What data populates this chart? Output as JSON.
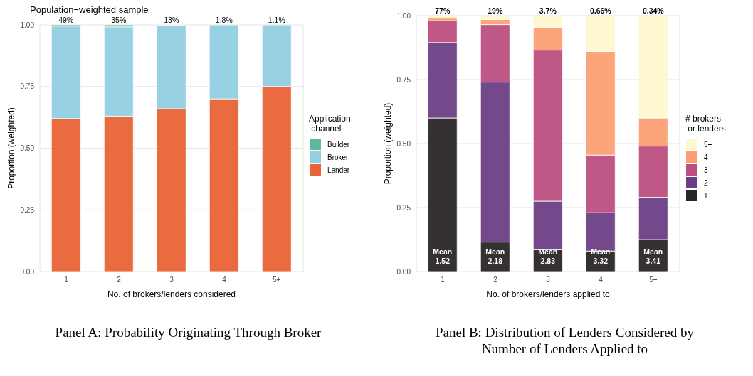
{
  "chart_data": [
    {
      "type": "bar",
      "title": "Panel A: Probability Originating Through Broker",
      "subtitle": "Population−weighted sample",
      "xlabel": "No. of brokers/lenders considered",
      "ylabel": "Proportion (weighted)",
      "legend_title": "Application\n channel",
      "categories": [
        "1",
        "2",
        "3",
        "4",
        "5+"
      ],
      "stacked": true,
      "series": [
        {
          "name": "Lender",
          "color": "#ea6336",
          "values": [
            0.62,
            0.63,
            0.66,
            0.7,
            0.75
          ]
        },
        {
          "name": "Broker",
          "color": "#92cfe1",
          "values": [
            0.375,
            0.362,
            0.337,
            0.3,
            0.25
          ]
        },
        {
          "name": "Builder",
          "color": "#5db99a",
          "values": [
            0.005,
            0.008,
            null,
            0,
            0
          ]
        }
      ],
      "annotations": [
        {
          "text": "49%",
          "x": "1",
          "y": 1
        },
        {
          "text": "35%",
          "x": "2",
          "y": 1
        },
        {
          "text": "13%",
          "x": "3",
          "y": 1
        },
        {
          "text": "1.8%",
          "x": "4",
          "y": 1
        },
        {
          "text": "1.1%",
          "x": "5+",
          "y": 1
        }
      ],
      "ylim": [
        0,
        1
      ],
      "yticks": [
        {
          "value": 0,
          "label": "0.00"
        },
        {
          "value": 0.25,
          "label": "0.25"
        },
        {
          "value": 0.5,
          "label": "0.50"
        },
        {
          "value": 0.75,
          "label": "0.75"
        },
        {
          "value": 1,
          "label": "1.00"
        }
      ],
      "grid": true,
      "legend": "right"
    },
    {
      "type": "bar",
      "title": "Panel B: Distribution of Lenders Considered by Number of Lenders Applied to",
      "xlabel": "No. of brokers/lenders applied to",
      "ylabel": "Proportion (weighted)",
      "legend_title": "# brokers\n or lenders",
      "categories": [
        "1",
        "2",
        "3",
        "4",
        "5+"
      ],
      "stacked": true,
      "series": [
        {
          "name": "1",
          "color": "#2a2627",
          "values": [
            0.6,
            0.115,
            0.085,
            0.08,
            0.125
          ]
        },
        {
          "name": "2",
          "color": "#6b3f86",
          "values": [
            0.295,
            0.625,
            0.19,
            0.15,
            0.165
          ]
        },
        {
          "name": "3",
          "color": "#bc4f80",
          "values": [
            0.085,
            0.225,
            0.59,
            0.225,
            0.2
          ]
        },
        {
          "name": "4",
          "color": "#fca073",
          "values": [
            0.01,
            0.02,
            0.09,
            0.405,
            0.11
          ]
        },
        {
          "name": "5+",
          "color": "#fdf8d0",
          "values": [
            0.01,
            0.015,
            0.045,
            0.14,
            0.4
          ]
        }
      ],
      "annotations": [
        {
          "text": "77%",
          "x": "1",
          "y": 1
        },
        {
          "text": "19%",
          "x": "2",
          "y": 1
        },
        {
          "text": "3.7%",
          "x": "3",
          "y": 1
        },
        {
          "text": "0.66%",
          "x": "4",
          "y": 1
        },
        {
          "text": "0.34%",
          "x": "5+",
          "y": 1
        },
        "Mean\n1.52",
        "Mean\n2.18",
        "Mean\n2.83",
        "Mean\n3.32",
        "Mean\n3.41"
      ],
      "ylim": [
        0,
        1
      ],
      "yticks": [
        {
          "value": 0,
          "label": "0.00"
        },
        {
          "value": 0.25,
          "label": "0.25"
        },
        {
          "value": 0.5,
          "label": "0.50"
        },
        {
          "value": 0.75,
          "label": "0.75"
        },
        {
          "value": 1,
          "label": "1.00"
        }
      ],
      "grid": true,
      "legend": "right"
    }
  ]
}
